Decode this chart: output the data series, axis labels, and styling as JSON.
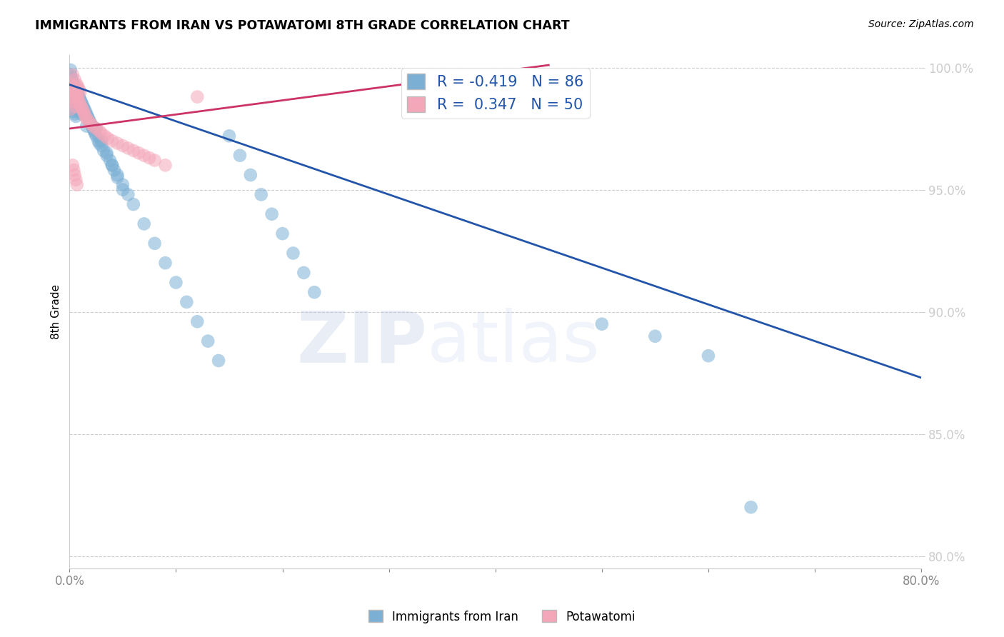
{
  "title": "IMMIGRANTS FROM IRAN VS POTAWATOMI 8TH GRADE CORRELATION CHART",
  "source": "Source: ZipAtlas.com",
  "ylabel": "8th Grade",
  "legend_label1": "Immigrants from Iran",
  "legend_label2": "Potawatomi",
  "R1": -0.419,
  "N1": 86,
  "R2": 0.347,
  "N2": 50,
  "color1": "#7BAFD4",
  "color2": "#F4A7B9",
  "line_color1": "#2255AA",
  "line_color2": "#CC3366",
  "xlim": [
    0.0,
    0.8
  ],
  "ylim": [
    0.795,
    1.005
  ],
  "yticks": [
    0.8,
    0.85,
    0.9,
    0.95,
    1.0
  ],
  "ytick_labels": [
    "80.0%",
    "85.0%",
    "90.0%",
    "95.0%",
    "100.0%"
  ],
  "xticks": [
    0.0,
    0.1,
    0.2,
    0.3,
    0.4,
    0.5,
    0.6,
    0.7,
    0.8
  ],
  "xtick_labels": [
    "0.0%",
    "",
    "",
    "",
    "",
    "",
    "",
    "",
    "80.0%"
  ],
  "watermark_zip": "ZIP",
  "watermark_atlas": "atlas",
  "blue_line_x": [
    0.0,
    0.8
  ],
  "blue_line_y": [
    0.993,
    0.873
  ],
  "pink_line_x": [
    0.0,
    0.45
  ],
  "pink_line_y": [
    0.975,
    1.001
  ],
  "blue_scatter_x": [
    0.001,
    0.001,
    0.001,
    0.002,
    0.002,
    0.002,
    0.003,
    0.003,
    0.003,
    0.004,
    0.004,
    0.004,
    0.005,
    0.005,
    0.005,
    0.006,
    0.006,
    0.006,
    0.007,
    0.007,
    0.008,
    0.008,
    0.009,
    0.009,
    0.01,
    0.01,
    0.011,
    0.011,
    0.012,
    0.013,
    0.014,
    0.015,
    0.016,
    0.016,
    0.017,
    0.018,
    0.019,
    0.02,
    0.021,
    0.022,
    0.023,
    0.024,
    0.025,
    0.027,
    0.028,
    0.03,
    0.032,
    0.035,
    0.038,
    0.04,
    0.042,
    0.045,
    0.05,
    0.055,
    0.06,
    0.07,
    0.08,
    0.09,
    0.1,
    0.11,
    0.12,
    0.13,
    0.14,
    0.15,
    0.16,
    0.17,
    0.18,
    0.19,
    0.2,
    0.21,
    0.22,
    0.23,
    0.025,
    0.03,
    0.035,
    0.04,
    0.045,
    0.05,
    0.5,
    0.55,
    0.6,
    0.64,
    0.001,
    0.002,
    0.003,
    0.004
  ],
  "blue_scatter_y": [
    0.997,
    0.993,
    0.988,
    0.996,
    0.991,
    0.985,
    0.994,
    0.989,
    0.983,
    0.993,
    0.988,
    0.982,
    0.992,
    0.987,
    0.981,
    0.991,
    0.986,
    0.98,
    0.99,
    0.985,
    0.989,
    0.984,
    0.988,
    0.983,
    0.987,
    0.982,
    0.986,
    0.981,
    0.985,
    0.984,
    0.983,
    0.982,
    0.981,
    0.976,
    0.98,
    0.979,
    0.978,
    0.977,
    0.976,
    0.975,
    0.974,
    0.973,
    0.972,
    0.97,
    0.969,
    0.968,
    0.966,
    0.964,
    0.962,
    0.96,
    0.958,
    0.956,
    0.952,
    0.948,
    0.944,
    0.936,
    0.928,
    0.92,
    0.912,
    0.904,
    0.896,
    0.888,
    0.88,
    0.972,
    0.964,
    0.956,
    0.948,
    0.94,
    0.932,
    0.924,
    0.916,
    0.908,
    0.975,
    0.97,
    0.965,
    0.96,
    0.955,
    0.95,
    0.895,
    0.89,
    0.882,
    0.82,
    0.999,
    0.995,
    0.99,
    0.985
  ],
  "pink_scatter_x": [
    0.001,
    0.001,
    0.002,
    0.002,
    0.003,
    0.003,
    0.004,
    0.004,
    0.005,
    0.005,
    0.006,
    0.006,
    0.007,
    0.007,
    0.008,
    0.008,
    0.009,
    0.009,
    0.01,
    0.01,
    0.011,
    0.012,
    0.013,
    0.014,
    0.015,
    0.016,
    0.018,
    0.02,
    0.022,
    0.025,
    0.028,
    0.03,
    0.033,
    0.036,
    0.04,
    0.045,
    0.05,
    0.055,
    0.06,
    0.065,
    0.07,
    0.075,
    0.08,
    0.09,
    0.003,
    0.004,
    0.005,
    0.006,
    0.007,
    0.12
  ],
  "pink_scatter_y": [
    0.988,
    0.983,
    0.993,
    0.988,
    0.997,
    0.992,
    0.991,
    0.986,
    0.995,
    0.99,
    0.989,
    0.984,
    0.993,
    0.988,
    0.992,
    0.987,
    0.991,
    0.986,
    0.99,
    0.985,
    0.984,
    0.983,
    0.982,
    0.981,
    0.98,
    0.979,
    0.978,
    0.977,
    0.976,
    0.975,
    0.974,
    0.973,
    0.972,
    0.971,
    0.97,
    0.969,
    0.968,
    0.967,
    0.966,
    0.965,
    0.964,
    0.963,
    0.962,
    0.96,
    0.96,
    0.958,
    0.956,
    0.954,
    0.952,
    0.988
  ]
}
